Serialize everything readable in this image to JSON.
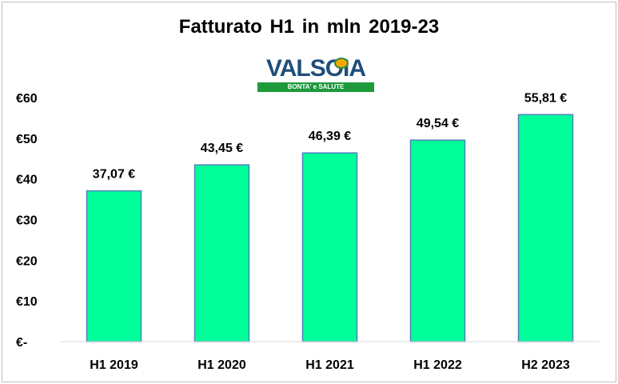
{
  "chart_data": {
    "type": "bar",
    "title": "Fatturato H1 in mln 2019-23",
    "categories": [
      "H1 2019",
      "H1 2020",
      "H1 2021",
      "H1 2022",
      "H2 2023"
    ],
    "values": [
      37.07,
      43.45,
      46.39,
      49.54,
      55.81
    ],
    "data_labels": [
      "37,07 €",
      "43,45 €",
      "46,39 €",
      "49,54 €",
      "55,81 €"
    ],
    "ylim": [
      0,
      60
    ],
    "yticks": [
      {
        "value": 0,
        "label": "€-"
      },
      {
        "value": 10,
        "label": "€10"
      },
      {
        "value": 20,
        "label": "€20"
      },
      {
        "value": 30,
        "label": "€30"
      },
      {
        "value": 40,
        "label": "€40"
      },
      {
        "value": 50,
        "label": "€50"
      },
      {
        "value": 60,
        "label": "€60"
      }
    ],
    "grid": false,
    "bar_color": "#00ff99",
    "bar_border_color": "#4f81bd"
  },
  "logo": {
    "word": "VALSOIA",
    "tagline": "BONTA' e SALUTE"
  }
}
